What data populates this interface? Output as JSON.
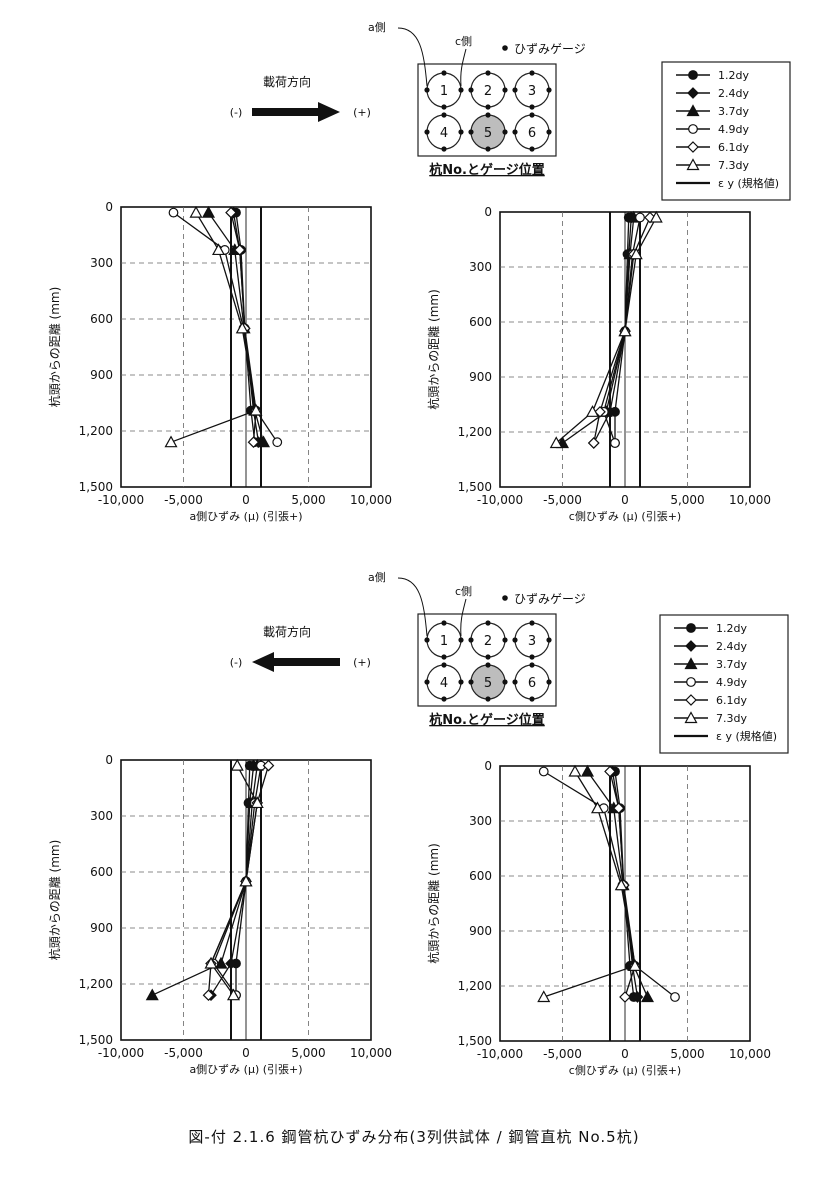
{
  "caption": "図-付 2.1.6 鋼管杭ひずみ分布(3列供試体 / 鋼管直杭 No.5杭)",
  "schematic": {
    "a_side": "a側",
    "c_side": "c側",
    "gauge_label": "ひずみゲージ",
    "load_direction": "載荷方向",
    "minus": "(-)",
    "plus": "(+)",
    "pile_numbers": [
      "1",
      "2",
      "3",
      "4",
      "5",
      "6"
    ],
    "caption": "杭No.とゲージ位置"
  },
  "legend": {
    "entries": [
      "1.2dy",
      "2.4dy",
      "3.7dy",
      "4.9dy",
      "6.1dy",
      "7.3dy"
    ],
    "yield_label": "ε y (規格値)"
  },
  "chart_data": [
    {
      "type": "line",
      "xlabel": "a側ひずみ (μ) (引張+)",
      "ylabel": "杭頭からの距離 (mm)",
      "xlim": [
        -10000,
        10000
      ],
      "ylim": [
        1500,
        0
      ],
      "xticks": [
        "-10,000",
        "-5,000",
        "0",
        "5,000",
        "10,000"
      ],
      "yticks": [
        "0",
        "300",
        "600",
        "900",
        "1,200",
        "1,500"
      ],
      "yield_strain": [
        -1200,
        1200
      ],
      "depths": [
        30,
        230,
        650,
        1090,
        1260
      ],
      "series": [
        {
          "name": "1.2dy",
          "x": [
            -800,
            -400,
            -100,
            400,
            700
          ]
        },
        {
          "name": "2.4dy",
          "x": [
            -1000,
            -500,
            -100,
            600,
            1000
          ]
        },
        {
          "name": "3.7dy",
          "x": [
            -3000,
            -900,
            -150,
            700,
            1400
          ]
        },
        {
          "name": "4.9dy",
          "x": [
            -5800,
            -1700,
            -200,
            800,
            2500
          ]
        },
        {
          "name": "6.1dy",
          "x": [
            -1200,
            -500,
            -100,
            800,
            600
          ]
        },
        {
          "name": "7.3dy",
          "x": [
            -4000,
            -2200,
            -300,
            800,
            -6000
          ]
        }
      ]
    },
    {
      "type": "line",
      "xlabel": "c側ひずみ (μ) (引張+)",
      "ylabel": "杭頭からの距離 (mm)",
      "xlim": [
        -10000,
        10000
      ],
      "ylim": [
        1500,
        0
      ],
      "xticks": [
        "-10,000",
        "-5,000",
        "0",
        "5,000",
        "10,000"
      ],
      "yticks": [
        "0",
        "300",
        "600",
        "900",
        "1,200",
        "1,500"
      ],
      "yield_strain": [
        -1200,
        1200
      ],
      "depths": [
        30,
        230,
        650,
        1090,
        1260
      ],
      "series": [
        {
          "name": "1.2dy",
          "x": [
            300,
            200,
            0,
            -800,
            -800
          ]
        },
        {
          "name": "2.4dy",
          "x": [
            500,
            300,
            0,
            -1200,
            -2500
          ]
        },
        {
          "name": "3.7dy",
          "x": [
            700,
            400,
            0,
            -1500,
            -5000
          ]
        },
        {
          "name": "4.9dy",
          "x": [
            1200,
            600,
            0,
            -1700,
            -800
          ]
        },
        {
          "name": "6.1dy",
          "x": [
            2000,
            700,
            0,
            -2000,
            -2500
          ]
        },
        {
          "name": "7.3dy",
          "x": [
            2500,
            900,
            0,
            -2600,
            -5500
          ]
        }
      ]
    },
    {
      "type": "line",
      "xlabel": "a側ひずみ (μ) (引張+)",
      "ylabel": "杭頭からの距離 (mm)",
      "xlim": [
        -10000,
        10000
      ],
      "ylim": [
        1500,
        0
      ],
      "xticks": [
        "-10,000",
        "-5,000",
        "0",
        "5,000",
        "10,000"
      ],
      "yticks": [
        "0",
        "300",
        "600",
        "900",
        "1,200",
        "1,500"
      ],
      "yield_strain": [
        -1200,
        1200
      ],
      "depths": [
        30,
        230,
        650,
        1090,
        1260
      ],
      "series": [
        {
          "name": "1.2dy",
          "x": [
            300,
            200,
            0,
            -800,
            -800
          ]
        },
        {
          "name": "2.4dy",
          "x": [
            600,
            300,
            0,
            -1200,
            -2800
          ]
        },
        {
          "name": "3.7dy",
          "x": [
            900,
            500,
            0,
            -2000,
            -7500
          ]
        },
        {
          "name": "4.9dy",
          "x": [
            1200,
            700,
            0,
            -2600,
            -800
          ]
        },
        {
          "name": "6.1dy",
          "x": [
            1800,
            900,
            0,
            -2800,
            -3000
          ]
        },
        {
          "name": "7.3dy",
          "x": [
            -700,
            900,
            0,
            -2800,
            -1000
          ]
        }
      ]
    },
    {
      "type": "line",
      "xlabel": "c側ひずみ (μ) (引張+)",
      "ylabel": "杭頭からの距離 (mm)",
      "xlim": [
        -10000,
        10000
      ],
      "ylim": [
        1500,
        0
      ],
      "xticks": [
        "-10,000",
        "-5,000",
        "0",
        "5,000",
        "10,000"
      ],
      "yticks": [
        "0",
        "300",
        "600",
        "900",
        "1,200",
        "1,500"
      ],
      "yield_strain": [
        -1200,
        1200
      ],
      "depths": [
        30,
        230,
        650,
        1090,
        1260
      ],
      "series": [
        {
          "name": "1.2dy",
          "x": [
            -800,
            -400,
            -100,
            400,
            700
          ]
        },
        {
          "name": "2.4dy",
          "x": [
            -1000,
            -500,
            -100,
            600,
            1000
          ]
        },
        {
          "name": "3.7dy",
          "x": [
            -3000,
            -900,
            -150,
            700,
            1800
          ]
        },
        {
          "name": "4.9dy",
          "x": [
            -6500,
            -1700,
            -200,
            800,
            4000
          ]
        },
        {
          "name": "6.1dy",
          "x": [
            -1200,
            -500,
            -100,
            800,
            0
          ]
        },
        {
          "name": "7.3dy",
          "x": [
            -4000,
            -2200,
            -300,
            800,
            -6500
          ]
        }
      ]
    }
  ]
}
